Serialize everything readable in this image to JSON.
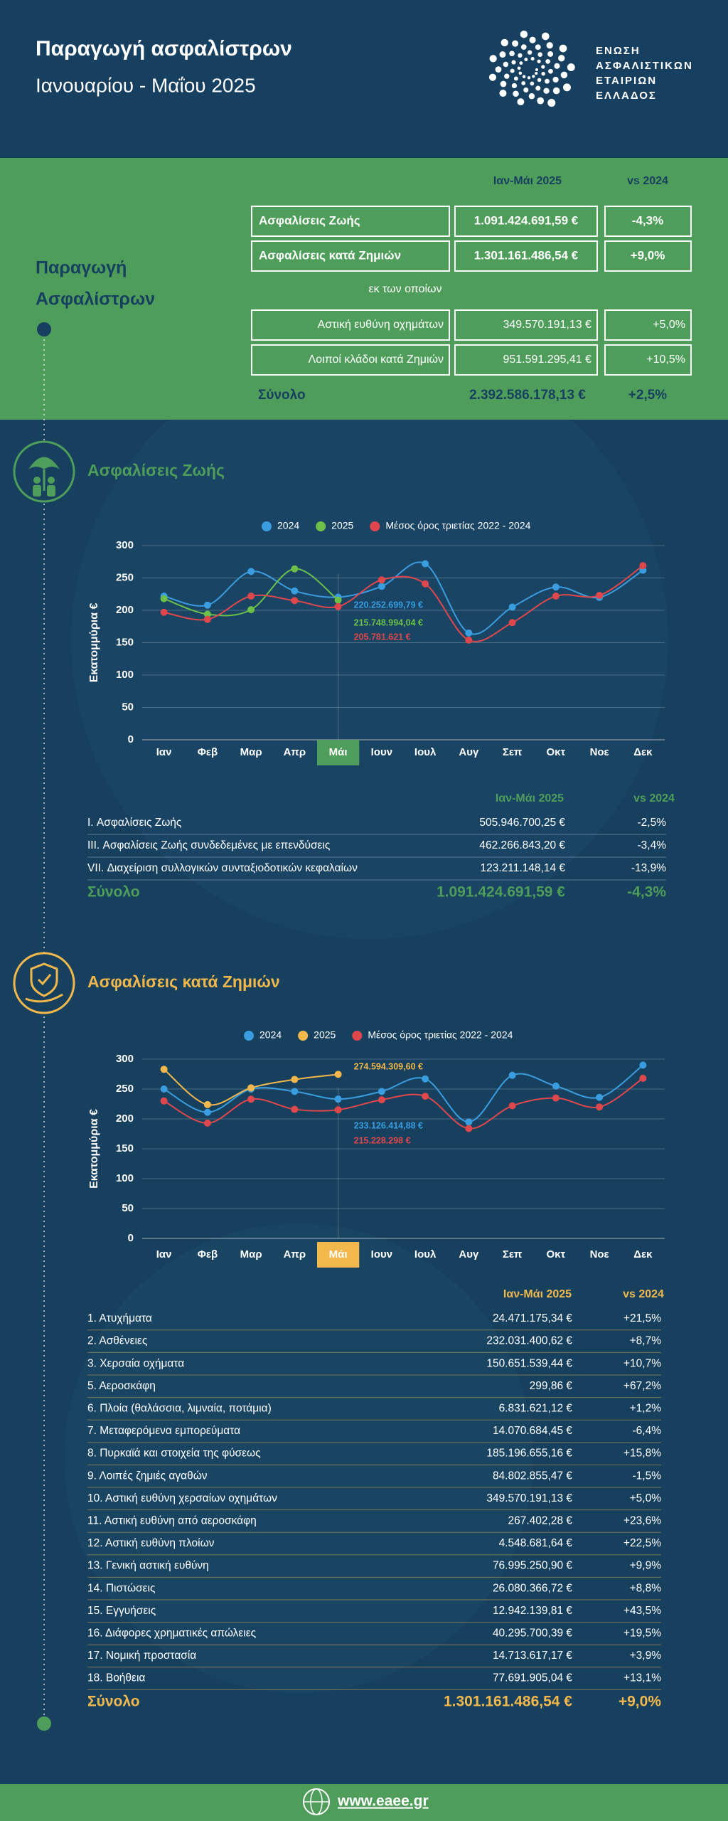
{
  "header": {
    "title": "Παραγωγή ασφαλίστρων",
    "subtitle": "Ιανουαρίου - Μαΐου 2025",
    "logo_lines": [
      "ΕΝΩΣΗ",
      "ΑΣΦΑΛΙΣΤΙΚΩΝ",
      "ΕΤΑΙΡΙΩΝ",
      "ΕΛΛΑΔΟΣ"
    ]
  },
  "summary": {
    "heading": [
      "Παραγωγή",
      "Ασφαλίστρων"
    ],
    "columns": [
      "Ιαν-Μάι 2025",
      "vs 2024"
    ],
    "rows": [
      [
        "Ασφαλίσεις Ζωής",
        "1.091.424.691,59 €",
        "-4,3%"
      ],
      [
        "Ασφαλίσεις κατά Ζημιών",
        "1.301.161.486,54 €",
        "+9,0%"
      ]
    ],
    "subheading": "εκ των οποίων",
    "sub_rows": [
      [
        "Αστική ευθύνη οχημάτων",
        "349.570.191,13 €",
        "+5,0%"
      ],
      [
        "Λοιποί κλάδοι κατά Ζημιών",
        "951.591.295,41 €",
        "+10,5%"
      ]
    ],
    "total": [
      "Σύνολο",
      "2.392.586.178,13 €",
      "+2,5%"
    ]
  },
  "life": {
    "title": "Ασφαλίσεις Ζωής",
    "columns": [
      "Ιαν-Μάι 2025",
      "vs 2024"
    ],
    "rows": [
      [
        "I. Ασφαλίσεις  Ζωής",
        "505.946.700,25 €",
        "-2,5%"
      ],
      [
        "III. Ασφαλίσεις  Ζωής  συνδεδεμένες με επενδύσεις",
        "462.266.843,20 €",
        "-3,4%"
      ],
      [
        "VII. Διαχείριση συλλογικών συνταξιοδοτικών κεφαλαίων",
        "123.211.148,14 €",
        "-13,9%"
      ]
    ],
    "total": [
      "Σύνολο",
      "1.091.424.691,59 €",
      "-4,3%"
    ]
  },
  "nonlife": {
    "title": "Ασφαλίσεις κατά Ζημιών",
    "columns": [
      "Ιαν-Μάι 2025",
      "vs 2024"
    ],
    "rows": [
      [
        "1. Ατυχήματα",
        "24.471.175,34 €",
        "+21,5%"
      ],
      [
        "2. Ασθένειες",
        "232.031.400,62 €",
        "+8,7%"
      ],
      [
        "3. Χερσαία οχήματα",
        "150.651.539,44 €",
        "+10,7%"
      ],
      [
        "5. Αεροσκάφη",
        "299,86 €",
        "+67,2%"
      ],
      [
        "6. Πλοία (θαλάσσια, λιμναία, ποτάμια)",
        "6.831.621,12 €",
        "+1,2%"
      ],
      [
        "7. Μεταφερόμενα εμπορεύματα",
        "14.070.684,45 €",
        "-6,4%"
      ],
      [
        "8. Πυρκαϊά και στοιχεία της φύσεως",
        "185.196.655,16 €",
        "+15,8%"
      ],
      [
        "9. Λοιπές ζημιές αγαθών",
        "84.802.855,47 €",
        "-1,5%"
      ],
      [
        "10. Αστική ευθύνη χερσαίων οχημάτων",
        "349.570.191,13 €",
        "+5,0%"
      ],
      [
        "11. Αστική ευθύνη από αεροσκάφη",
        "267.402,28 €",
        "+23,6%"
      ],
      [
        "12. Αστική ευθύνη πλοίων",
        "4.548.681,64 €",
        "+22,5%"
      ],
      [
        "13. Γενική αστική ευθύνη",
        "76.995.250,90 €",
        "+9,9%"
      ],
      [
        "14. Πιστώσεις",
        "26.080.366,72 €",
        "+8,8%"
      ],
      [
        "15. Εγγυήσεις",
        "12.942.139,81 €",
        "+43,5%"
      ],
      [
        "16. Διάφορες χρηματικές απώλειες",
        "40.295.700,39 €",
        "+19,5%"
      ],
      [
        "17. Νομική προστασία",
        "14.713.617,17 €",
        "+3,9%"
      ],
      [
        "18. Βοήθεια",
        "77.691.905,04 €",
        "+13,1%"
      ]
    ],
    "total": [
      "Σύνολο",
      "1.301.161.486,54 €",
      "+9,0%"
    ]
  },
  "chart_data": [
    {
      "type": "line",
      "ylabel": "Εκατομμύρια €",
      "ylim": [
        0,
        300
      ],
      "yticks": [
        0,
        50,
        100,
        150,
        200,
        250,
        300
      ],
      "grid": true,
      "highlight_index": 4,
      "highlight_color": "#4f9d5a",
      "categories": [
        "Ιαν",
        "Φεβ",
        "Μαρ",
        "Απρ",
        "Μάι",
        "Ιουν",
        "Ιουλ",
        "Αυγ",
        "Σεπ",
        "Οκτ",
        "Νοε",
        "Δεκ"
      ],
      "series": [
        {
          "name": "2024",
          "color": "#3a9de0",
          "values": [
            222,
            208,
            260,
            230,
            220.25269979,
            237,
            272,
            165,
            205,
            236,
            220,
            262
          ],
          "value_labels": [
            null,
            null,
            null,
            null,
            "220.252.699,79 €",
            null,
            null,
            null,
            null,
            null,
            null,
            null
          ]
        },
        {
          "name": "2025",
          "color": "#6cc04a",
          "values": [
            218,
            194,
            201,
            264,
            215.74899404,
            null,
            null,
            null,
            null,
            null,
            null,
            null
          ],
          "value_labels": [
            null,
            null,
            null,
            null,
            "215.748.994,04 €",
            null,
            null,
            null,
            null,
            null,
            null,
            null
          ]
        },
        {
          "name": "Μέσος όρος τριετίας 2022 - 2024",
          "color": "#e0474c",
          "values": [
            197,
            186,
            222,
            215,
            205.781621,
            247,
            241,
            154,
            181,
            222,
            223,
            269
          ],
          "value_labels": [
            null,
            null,
            null,
            null,
            "205.781.621 €",
            null,
            null,
            null,
            null,
            null,
            null,
            null
          ]
        }
      ]
    },
    {
      "type": "line",
      "ylabel": "Εκατομμύρια €",
      "ylim": [
        0,
        300
      ],
      "yticks": [
        0,
        50,
        100,
        150,
        200,
        250,
        300
      ],
      "grid": true,
      "highlight_index": 4,
      "highlight_color": "#f2b84b",
      "categories": [
        "Ιαν",
        "Φεβ",
        "Μαρ",
        "Απρ",
        "Μάι",
        "Ιουν",
        "Ιουλ",
        "Αυγ",
        "Σεπ",
        "Οκτ",
        "Νοε",
        "Δεκ"
      ],
      "series": [
        {
          "name": "2024",
          "color": "#3a9de0",
          "values": [
            250,
            211,
            250,
            246,
            233.12641488,
            246,
            267,
            195,
            273,
            255,
            236,
            290
          ],
          "value_labels": [
            null,
            null,
            null,
            null,
            "233.126.414,88 €",
            null,
            null,
            null,
            null,
            null,
            null,
            null
          ]
        },
        {
          "name": "2025",
          "color": "#f2b84b",
          "values": [
            283,
            224,
            252,
            266,
            274.5943096,
            null,
            null,
            null,
            null,
            null,
            null,
            null
          ],
          "value_labels": [
            null,
            null,
            null,
            null,
            "274.594.309,60 €",
            null,
            null,
            null,
            null,
            null,
            null,
            null
          ]
        },
        {
          "name": "Μέσος όρος τριετίας 2022 - 2024",
          "color": "#e0474c",
          "values": [
            230,
            193,
            233,
            216,
            215.228298,
            232,
            238,
            184,
            222,
            235,
            220,
            268
          ],
          "value_labels": [
            null,
            null,
            null,
            null,
            "215.228.298 €",
            null,
            null,
            null,
            null,
            null,
            null,
            null
          ]
        }
      ]
    }
  ],
  "footer": {
    "url": "www.eaee.gr"
  }
}
